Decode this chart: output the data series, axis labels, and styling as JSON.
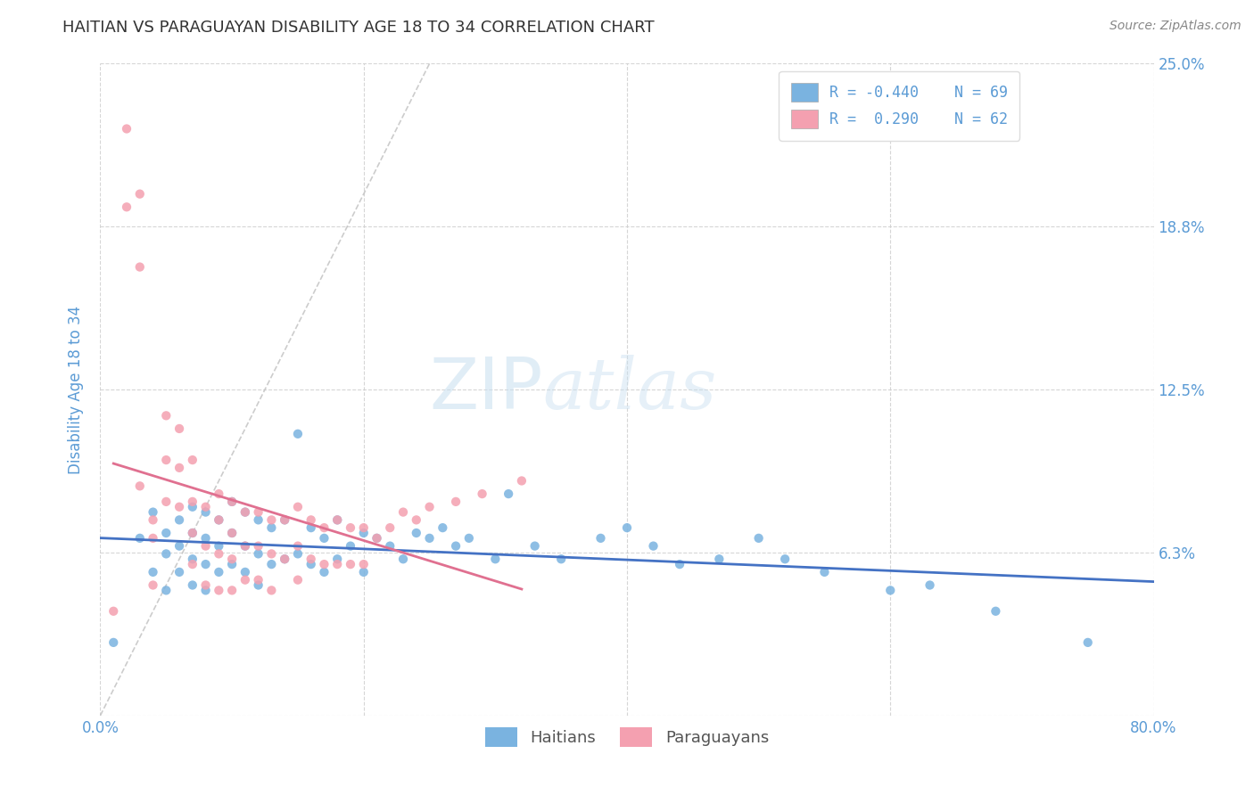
{
  "title": "HAITIAN VS PARAGUAYAN DISABILITY AGE 18 TO 34 CORRELATION CHART",
  "source_text": "Source: ZipAtlas.com",
  "ylabel": "Disability Age 18 to 34",
  "xlim": [
    0.0,
    0.8
  ],
  "ylim": [
    0.0,
    0.25
  ],
  "xticks": [
    0.0,
    0.2,
    0.4,
    0.6,
    0.8
  ],
  "xticklabels": [
    "0.0%",
    "",
    "",
    "",
    "80.0%"
  ],
  "yticks": [
    0.0,
    0.0625,
    0.125,
    0.1875,
    0.25
  ],
  "yticklabels_right": [
    "",
    "6.3%",
    "12.5%",
    "18.8%",
    "25.0%"
  ],
  "haitian_color": "#7ab3e0",
  "paraguayan_color": "#f4a0b0",
  "haitian_line_color": "#4472c4",
  "paraguayan_line_color": "#e07090",
  "haitian_R": -0.44,
  "haitian_N": 69,
  "paraguayan_R": 0.29,
  "paraguayan_N": 62,
  "legend_label_haitian": "Haitians",
  "legend_label_paraguayan": "Paraguayans",
  "background_color": "#ffffff",
  "grid_color": "#cccccc",
  "title_color": "#333333",
  "axis_label_color": "#5b9bd5",
  "tick_color": "#5b9bd5",
  "haitian_scatter_x": [
    0.01,
    0.03,
    0.04,
    0.04,
    0.05,
    0.05,
    0.05,
    0.06,
    0.06,
    0.06,
    0.07,
    0.07,
    0.07,
    0.07,
    0.08,
    0.08,
    0.08,
    0.08,
    0.09,
    0.09,
    0.09,
    0.1,
    0.1,
    0.1,
    0.11,
    0.11,
    0.11,
    0.12,
    0.12,
    0.12,
    0.13,
    0.13,
    0.14,
    0.14,
    0.15,
    0.15,
    0.16,
    0.16,
    0.17,
    0.17,
    0.18,
    0.18,
    0.19,
    0.2,
    0.2,
    0.21,
    0.22,
    0.23,
    0.24,
    0.25,
    0.26,
    0.27,
    0.28,
    0.3,
    0.31,
    0.33,
    0.35,
    0.38,
    0.4,
    0.42,
    0.44,
    0.47,
    0.5,
    0.52,
    0.55,
    0.6,
    0.63,
    0.68,
    0.75
  ],
  "haitian_scatter_y": [
    0.028,
    0.068,
    0.078,
    0.055,
    0.07,
    0.062,
    0.048,
    0.075,
    0.065,
    0.055,
    0.08,
    0.07,
    0.06,
    0.05,
    0.078,
    0.068,
    0.058,
    0.048,
    0.075,
    0.065,
    0.055,
    0.082,
    0.07,
    0.058,
    0.078,
    0.065,
    0.055,
    0.075,
    0.062,
    0.05,
    0.072,
    0.058,
    0.075,
    0.06,
    0.108,
    0.062,
    0.072,
    0.058,
    0.068,
    0.055,
    0.075,
    0.06,
    0.065,
    0.07,
    0.055,
    0.068,
    0.065,
    0.06,
    0.07,
    0.068,
    0.072,
    0.065,
    0.068,
    0.06,
    0.085,
    0.065,
    0.06,
    0.068,
    0.072,
    0.065,
    0.058,
    0.06,
    0.068,
    0.06,
    0.055,
    0.048,
    0.05,
    0.04,
    0.028
  ],
  "paraguayan_scatter_x": [
    0.01,
    0.02,
    0.02,
    0.03,
    0.03,
    0.03,
    0.04,
    0.04,
    0.04,
    0.05,
    0.05,
    0.05,
    0.06,
    0.06,
    0.06,
    0.07,
    0.07,
    0.07,
    0.07,
    0.08,
    0.08,
    0.08,
    0.09,
    0.09,
    0.09,
    0.09,
    0.1,
    0.1,
    0.1,
    0.1,
    0.11,
    0.11,
    0.11,
    0.12,
    0.12,
    0.12,
    0.13,
    0.13,
    0.13,
    0.14,
    0.14,
    0.15,
    0.15,
    0.15,
    0.16,
    0.16,
    0.17,
    0.17,
    0.18,
    0.18,
    0.19,
    0.19,
    0.2,
    0.2,
    0.21,
    0.22,
    0.23,
    0.24,
    0.25,
    0.27,
    0.29,
    0.32
  ],
  "paraguayan_scatter_y": [
    0.04,
    0.195,
    0.225,
    0.2,
    0.172,
    0.088,
    0.075,
    0.068,
    0.05,
    0.115,
    0.098,
    0.082,
    0.11,
    0.095,
    0.08,
    0.098,
    0.082,
    0.07,
    0.058,
    0.08,
    0.065,
    0.05,
    0.085,
    0.075,
    0.062,
    0.048,
    0.082,
    0.07,
    0.06,
    0.048,
    0.078,
    0.065,
    0.052,
    0.078,
    0.065,
    0.052,
    0.075,
    0.062,
    0.048,
    0.075,
    0.06,
    0.08,
    0.065,
    0.052,
    0.075,
    0.06,
    0.072,
    0.058,
    0.075,
    0.058,
    0.072,
    0.058,
    0.072,
    0.058,
    0.068,
    0.072,
    0.078,
    0.075,
    0.08,
    0.082,
    0.085,
    0.09
  ]
}
